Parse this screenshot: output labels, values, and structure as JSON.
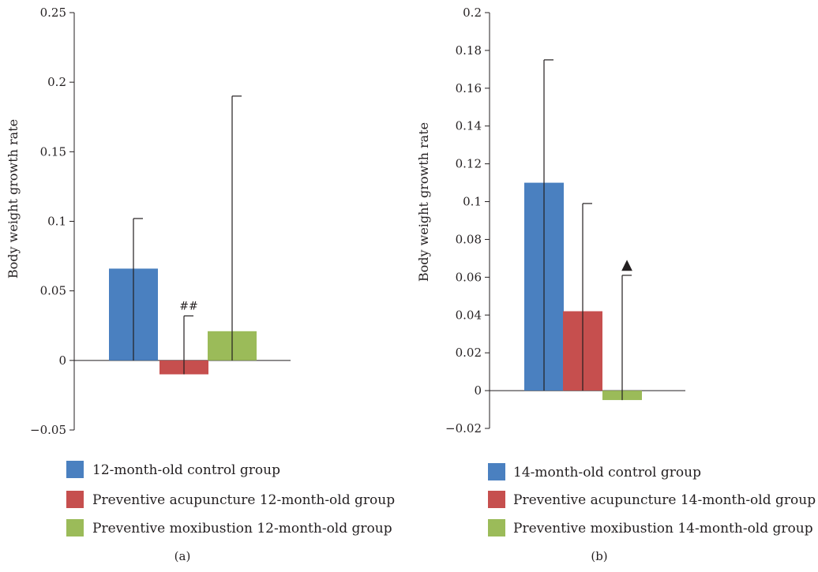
{
  "colors": {
    "blue": "#4a80c0",
    "red": "#c64f4e",
    "green": "#9bbb59",
    "axis": "#231f20"
  },
  "chart_data": [
    {
      "type": "bar",
      "panel_label": "(a)",
      "ylabel": "Body weight growth rate",
      "ylim": [
        -0.05,
        0.25
      ],
      "yticks": [
        -0.05,
        0,
        0.05,
        0.1,
        0.15,
        0.2,
        0.25
      ],
      "ytick_labels": [
        "−0.05",
        "0",
        "0.05",
        "0.1",
        "0.15",
        "0.2",
        "0.25"
      ],
      "grid": false,
      "legend_position": "bottom",
      "series": [
        {
          "name": "12-month-old control group",
          "value": 0.066,
          "error_top": 0.102,
          "annotation": "",
          "color": "#4a80c0"
        },
        {
          "name": "Preventive acupuncture 12-month-old group",
          "value": -0.01,
          "error_top": 0.032,
          "annotation": "##",
          "color": "#c64f4e"
        },
        {
          "name": "Preventive moxibustion 12-month-old group",
          "value": 0.021,
          "error_top": 0.19,
          "annotation": "",
          "color": "#9bbb59"
        }
      ]
    },
    {
      "type": "bar",
      "panel_label": "(b)",
      "ylabel": "Body weight growth rate",
      "ylim": [
        -0.02,
        0.2
      ],
      "yticks": [
        -0.02,
        0,
        0.02,
        0.04,
        0.06,
        0.08,
        0.1,
        0.12,
        0.14,
        0.16,
        0.18,
        0.2
      ],
      "ytick_labels": [
        "−0.02",
        "0",
        "0.02",
        "0.04",
        "0.06",
        "0.08",
        "0.1",
        "0.12",
        "0.14",
        "0.16",
        "0.18",
        "0.2"
      ],
      "grid": false,
      "legend_position": "bottom",
      "series": [
        {
          "name": "14-month-old control group",
          "value": 0.11,
          "error_top": 0.175,
          "annotation": "",
          "color": "#4a80c0"
        },
        {
          "name": "Preventive acupuncture 14-month-old group",
          "value": 0.042,
          "error_top": 0.099,
          "annotation": "",
          "color": "#c64f4e"
        },
        {
          "name": "Preventive moxibustion 14-month-old group",
          "value": -0.005,
          "error_top": 0.061,
          "annotation": "▲",
          "color": "#9bbb59"
        }
      ]
    }
  ]
}
